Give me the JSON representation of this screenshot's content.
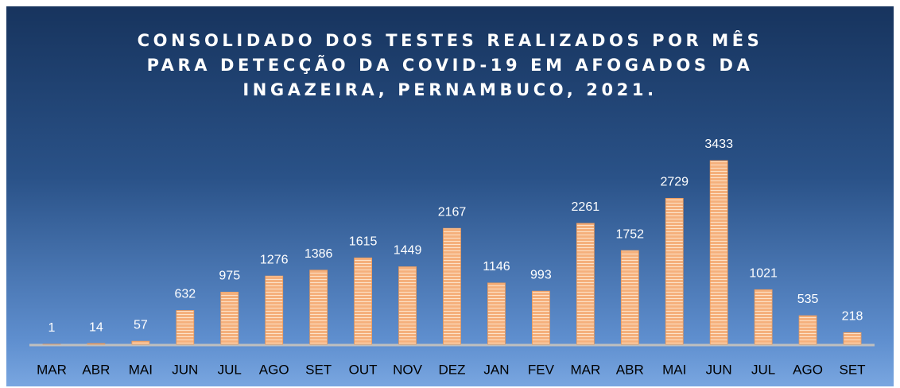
{
  "chart_data": {
    "type": "bar",
    "title": "CONSOLIDADO DOS TESTES REALIZADOS POR MÊS PARA DETECÇÃO DA COVID-19 EM AFOGADOS DA INGAZEIRA, PERNAMBUCO, 2021.",
    "categories": [
      "MAR",
      "ABR",
      "MAI",
      "JUN",
      "JUL",
      "AGO",
      "SET",
      "OUT",
      "NOV",
      "DEZ",
      "JAN",
      "FEV",
      "MAR",
      "ABR",
      "MAI",
      "JUN",
      "JUL",
      "AGO",
      "SET"
    ],
    "values": [
      1,
      14,
      57,
      632,
      975,
      1276,
      1386,
      1615,
      1449,
      2167,
      1146,
      993,
      2261,
      1752,
      2729,
      3433,
      1021,
      535,
      218
    ],
    "color": "#f5b07c"
  }
}
